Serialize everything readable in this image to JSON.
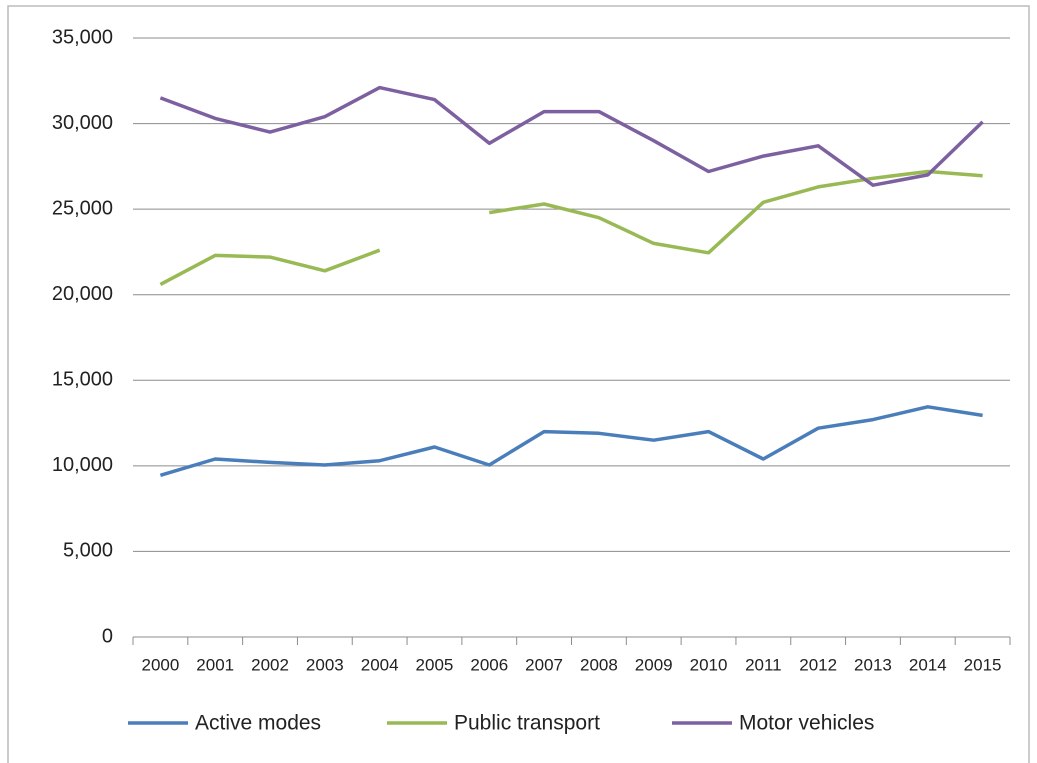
{
  "chart_data": {
    "type": "line",
    "categories": [
      "2000",
      "2001",
      "2002",
      "2003",
      "2004",
      "2005",
      "2006",
      "2007",
      "2008",
      "2009",
      "2010",
      "2011",
      "2012",
      "2013",
      "2014",
      "2015"
    ],
    "series": [
      {
        "name": "Active modes",
        "color": "#4a7ebb",
        "values": [
          9450,
          10400,
          10200,
          10050,
          10300,
          11100,
          10050,
          12000,
          11900,
          11500,
          12000,
          10400,
          12200,
          12700,
          13450,
          12950
        ]
      },
      {
        "name": "Public transport",
        "color": "#98b954",
        "values": [
          20600,
          22300,
          22200,
          21400,
          22600,
          null,
          24800,
          25300,
          24500,
          23000,
          22450,
          25400,
          26300,
          26800,
          27200,
          26950
        ]
      },
      {
        "name": "Motor vehicles",
        "color": "#7d60a0",
        "values": [
          31500,
          30300,
          29500,
          30400,
          32100,
          31400,
          28850,
          30700,
          30700,
          29000,
          27200,
          28100,
          28700,
          26400,
          27000,
          30100
        ]
      }
    ],
    "ylim": [
      0,
      35000
    ],
    "yticks": [
      0,
      {
        "value": 5000,
        "label": "5,000"
      },
      {
        "value": 10000,
        "label": "10,000"
      },
      {
        "value": 15000,
        "label": "15,000"
      },
      {
        "value": 20000,
        "label": "20,000"
      },
      {
        "value": 25000,
        "label": "25,000"
      },
      {
        "value": 30000,
        "label": "30,000"
      },
      {
        "value": 35000,
        "label": "35,000"
      }
    ],
    "grid": true,
    "legend": "bottom"
  }
}
